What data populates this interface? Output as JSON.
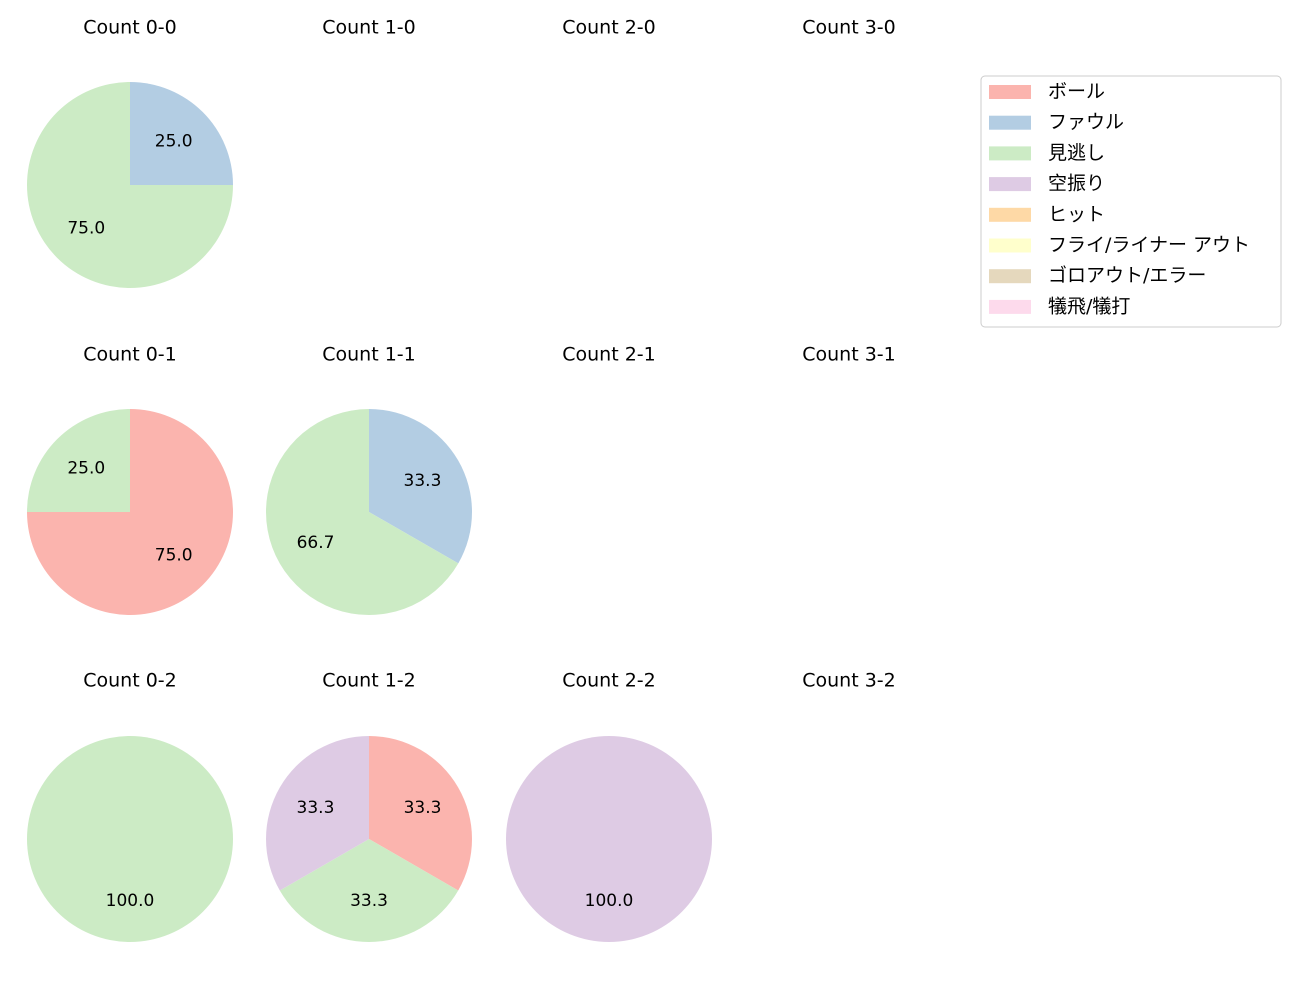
{
  "chart_data": [
    {
      "type": "pie",
      "title": "Count 0-0",
      "categories": [
        "ファウル",
        "見逃し"
      ],
      "values": [
        25,
        75
      ],
      "value_labels": [
        "25.0",
        "75.0"
      ],
      "colors": [
        "#b3cde3",
        "#ccebc5"
      ]
    },
    {
      "type": "pie",
      "title": "Count 1-0",
      "categories": [],
      "values": [],
      "value_labels": [],
      "colors": []
    },
    {
      "type": "pie",
      "title": "Count 2-0",
      "categories": [],
      "values": [],
      "value_labels": [],
      "colors": []
    },
    {
      "type": "pie",
      "title": "Count 3-0",
      "categories": [],
      "values": [],
      "value_labels": [],
      "colors": []
    },
    {
      "type": "pie",
      "title": "Count 0-1",
      "categories": [
        "ボール",
        "見逃し"
      ],
      "values": [
        75,
        25
      ],
      "value_labels": [
        "75.0",
        "25.0"
      ],
      "colors": [
        "#fbb4ae",
        "#ccebc5"
      ]
    },
    {
      "type": "pie",
      "title": "Count 1-1",
      "categories": [
        "ファウル",
        "見逃し"
      ],
      "values": [
        33.3,
        66.7
      ],
      "value_labels": [
        "33.3",
        "66.7"
      ],
      "colors": [
        "#b3cde3",
        "#ccebc5"
      ]
    },
    {
      "type": "pie",
      "title": "Count 2-1",
      "categories": [],
      "values": [],
      "value_labels": [],
      "colors": []
    },
    {
      "type": "pie",
      "title": "Count 3-1",
      "categories": [],
      "values": [],
      "value_labels": [],
      "colors": []
    },
    {
      "type": "pie",
      "title": "Count 0-2",
      "categories": [
        "見逃し"
      ],
      "values": [
        100
      ],
      "value_labels": [
        "100.0"
      ],
      "colors": [
        "#ccebc5"
      ]
    },
    {
      "type": "pie",
      "title": "Count 1-2",
      "categories": [
        "ボール",
        "見逃し",
        "空振り"
      ],
      "values": [
        33.3,
        33.3,
        33.3
      ],
      "value_labels": [
        "33.3",
        "33.3",
        "33.3"
      ],
      "colors": [
        "#fbb4ae",
        "#ccebc5",
        "#decbe4"
      ]
    },
    {
      "type": "pie",
      "title": "Count 2-2",
      "categories": [
        "空振り"
      ],
      "values": [
        100
      ],
      "value_labels": [
        "100.0"
      ],
      "colors": [
        "#decbe4"
      ]
    },
    {
      "type": "pie",
      "title": "Count 3-2",
      "categories": [],
      "values": [],
      "value_labels": [],
      "colors": []
    }
  ],
  "legend": {
    "loc": "upper right",
    "labels": [
      "ボール",
      "ファウル",
      "見逃し",
      "空振り",
      "ヒット",
      "フライ/ライナー アウト",
      "ゴロアウト/エラー",
      "犠飛/犠打"
    ],
    "colors": [
      "#fbb4ae",
      "#b3cde3",
      "#ccebc5",
      "#decbe4",
      "#fed9a6",
      "#ffffcc",
      "#e5d8bd",
      "#fddaec"
    ]
  }
}
